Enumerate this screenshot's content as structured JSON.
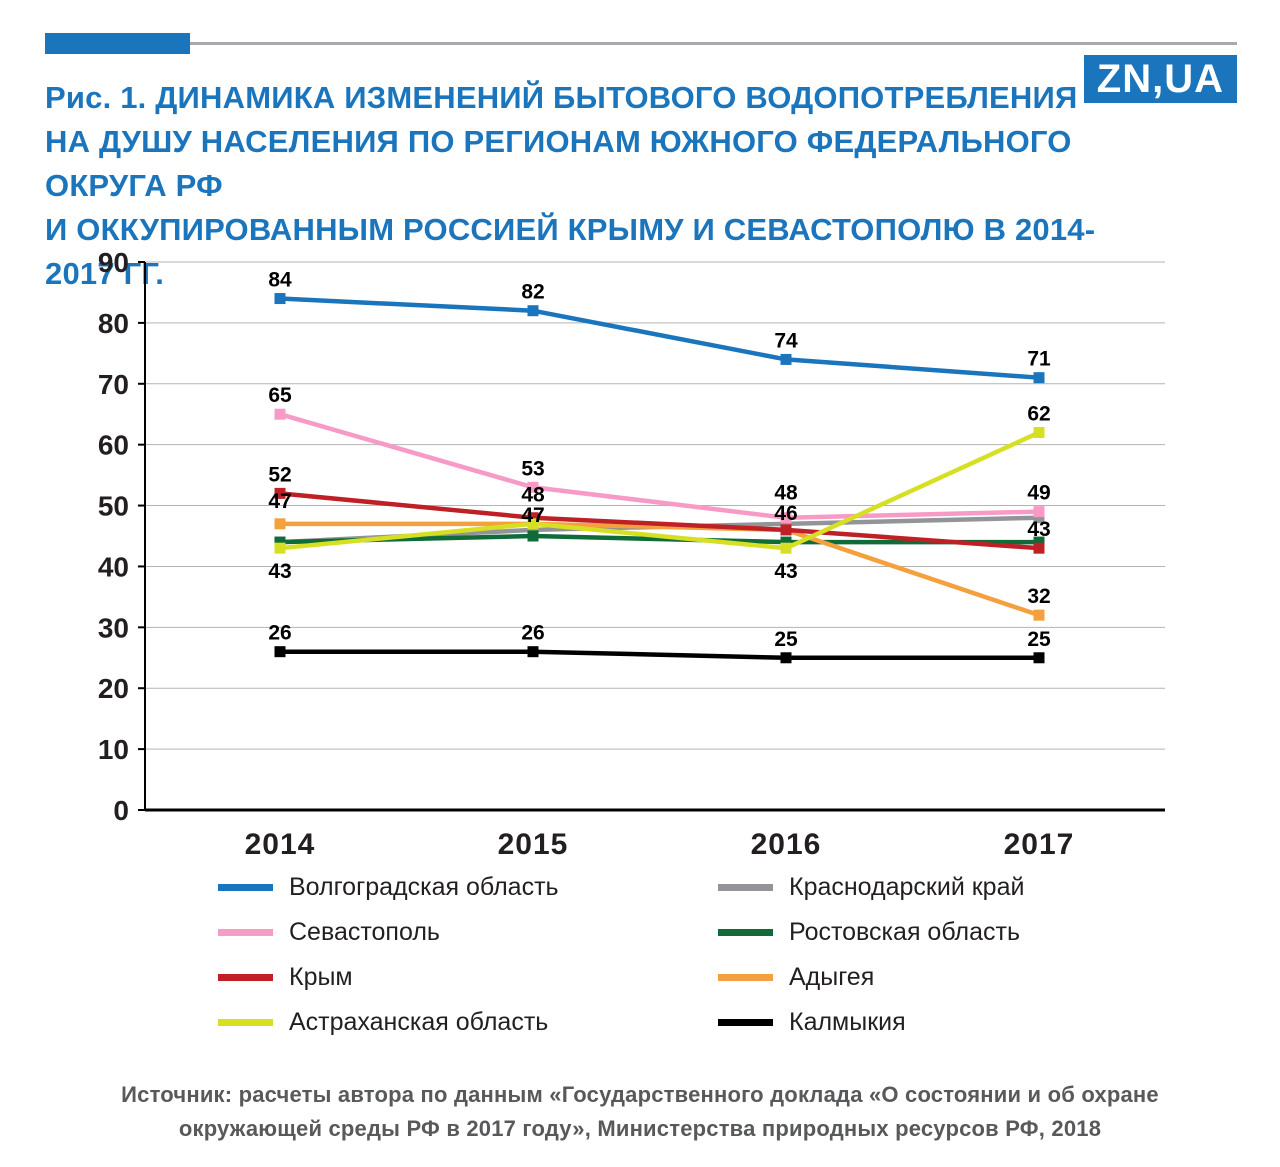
{
  "header": {
    "accent_color": "#1b75bc",
    "logo_text": "ZN,UA",
    "title_lines": [
      "Рис. 1. ДИНАМИКА ИЗМЕНЕНИЙ БЫТОВОГО ВОДОПОТРЕБЛЕНИЯ",
      "НА ДУШУ НАСЕЛЕНИЯ ПО РЕГИОНАМ ЮЖНОГО ФЕДЕРАЛЬНОГО ОКРУГА РФ",
      "И ОККУПИРОВАННЫМ РОССИЕЙ КРЫМУ И СЕВАСТОПОЛЮ В 2014-2017 ГГ."
    ]
  },
  "chart_data": {
    "type": "line",
    "title": "Рис. 1. Динамика изменений бытового водопотребления на душу населения по регионам Южного федерального округа РФ и оккупированным Россией Крыму и Севастополю в 2014-2017 гг.",
    "x": [
      "2014",
      "2015",
      "2016",
      "2017"
    ],
    "xlabel": "",
    "ylabel": "",
    "ylim": [
      0,
      90
    ],
    "ytick_step": 10,
    "grid": true,
    "legend_position": "bottom",
    "marker": "square",
    "draw_order": [
      4,
      5,
      6,
      2,
      1,
      3,
      0,
      7
    ],
    "legend_columns": [
      [
        0,
        1,
        2,
        3
      ],
      [
        4,
        5,
        6,
        7
      ]
    ],
    "series": [
      {
        "name": "Волгоградская область",
        "color": "#1b75bc",
        "values": [
          84,
          82,
          74,
          71
        ],
        "labels": [
          {
            "i": 0,
            "t": "84"
          },
          {
            "i": 1,
            "t": "82"
          },
          {
            "i": 2,
            "t": "74"
          },
          {
            "i": 3,
            "t": "71"
          }
        ]
      },
      {
        "name": "Севастополь",
        "color": "#f79ac6",
        "values": [
          65,
          53,
          48,
          49
        ],
        "labels": [
          {
            "i": 0,
            "t": "65"
          },
          {
            "i": 1,
            "t": "53"
          },
          {
            "i": 2,
            "t": "48",
            "dy": -6
          },
          {
            "i": 3,
            "t": "49"
          }
        ]
      },
      {
        "name": "Крым",
        "color": "#be2026",
        "values": [
          52,
          48,
          46,
          43
        ],
        "labels": [
          {
            "i": 0,
            "t": "52"
          },
          {
            "i": 1,
            "t": "48",
            "dy": -4
          },
          {
            "i": 2,
            "t": "46",
            "dy": 2
          },
          {
            "i": 3,
            "t": "43"
          }
        ]
      },
      {
        "name": "Астраханская область",
        "color": "#d7df23",
        "values": [
          43,
          47,
          43,
          62
        ],
        "labels": [
          {
            "i": 0,
            "t": "43",
            "p": "below"
          },
          {
            "i": 1,
            "t": "47",
            "dy": 10
          },
          {
            "i": 2,
            "t": "43",
            "p": "below"
          },
          {
            "i": 3,
            "t": "62"
          }
        ]
      },
      {
        "name": "Краснодарский край",
        "color": "#929497",
        "values": [
          44,
          46,
          47,
          48
        ],
        "labels": []
      },
      {
        "name": "Ростовская область",
        "color": "#0f6b38",
        "values": [
          44,
          45,
          44,
          44
        ],
        "labels": []
      },
      {
        "name": "Адыгея",
        "color": "#f5a03e",
        "values": [
          47,
          47,
          46,
          32
        ],
        "labels": [
          {
            "i": 0,
            "t": "47",
            "dy": -4
          },
          {
            "i": 3,
            "t": "32"
          }
        ]
      },
      {
        "name": "Калмыкия",
        "color": "#000000",
        "values": [
          26,
          26,
          25,
          25
        ],
        "labels": [
          {
            "i": 0,
            "t": "26"
          },
          {
            "i": 1,
            "t": "26"
          },
          {
            "i": 2,
            "t": "25"
          },
          {
            "i": 3,
            "t": "25"
          }
        ]
      }
    ]
  },
  "footer": {
    "source_lines": [
      "Источник: расчеты автора по данным «Государственного доклада «О состоянии и об охране",
      "окружающей среды РФ в 2017 году», Министерства природных ресурсов РФ, 2018"
    ]
  }
}
